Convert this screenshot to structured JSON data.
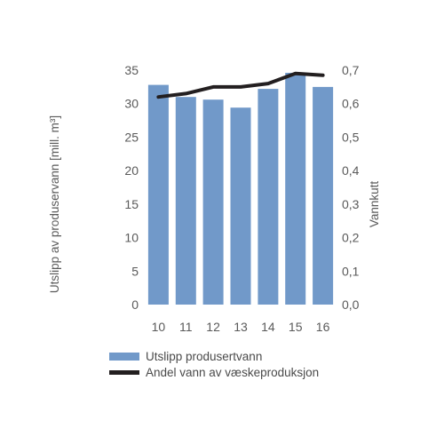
{
  "chart_data": {
    "type": "bar",
    "categories": [
      "10",
      "11",
      "12",
      "13",
      "14",
      "15",
      "16"
    ],
    "series": [
      {
        "name": "Utslipp produsertvann",
        "type": "bar",
        "axis": "left",
        "values": [
          32.8,
          31.0,
          30.6,
          29.4,
          32.2,
          34.6,
          32.5
        ],
        "color": "#7199c9"
      },
      {
        "name": "Andel vann av væskeproduksjon",
        "type": "line",
        "axis": "right",
        "values": [
          0.62,
          0.63,
          0.65,
          0.65,
          0.66,
          0.69,
          0.685
        ],
        "color": "#231f20"
      }
    ],
    "ylabel": "Utslipp av produservann [mill. m³]",
    "ylabel_right": "Vannkutt",
    "ylim": [
      0,
      35
    ],
    "ylim_right": [
      0,
      0.7
    ],
    "yticks": [
      "0",
      "5",
      "10",
      "15",
      "20",
      "25",
      "30",
      "35"
    ],
    "yticks_right": [
      "0,0",
      "0,1",
      "0,2",
      "0,3",
      "0,4",
      "0,5",
      "0,6",
      "0,7"
    ],
    "grid": false,
    "legend_position": "bottom"
  }
}
